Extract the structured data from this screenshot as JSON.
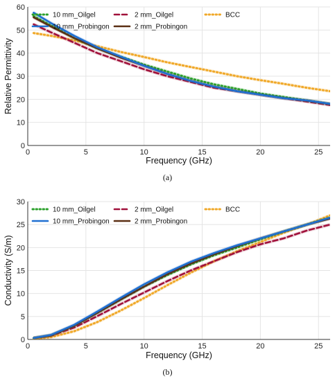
{
  "colors": {
    "oilgel_10": "#2ca02c",
    "probingon_10": "#1f6fd1",
    "oilgel_2": "#a0103a",
    "probingon_2": "#5a2e12",
    "bcc": "#f0a828"
  },
  "chart_data": [
    {
      "type": "line",
      "panel_label": "(a)",
      "xlabel": "Frequency (GHz)",
      "ylabel": "Relative Permittivity",
      "xlim": [
        0,
        26
      ],
      "ylim": [
        0,
        60
      ],
      "xticks": [
        0,
        5,
        10,
        15,
        20,
        25
      ],
      "yticks": [
        0,
        10,
        20,
        30,
        40,
        50,
        60
      ],
      "grid": true,
      "legend_position": "top",
      "x": [
        0.5,
        2,
        4,
        6,
        8,
        10,
        12,
        14,
        16,
        18,
        20,
        22,
        24,
        26
      ],
      "series": [
        {
          "name": "10 mm_Oilgel",
          "style": "dotted",
          "values": [
            56.0,
            52.0,
            46.5,
            42.0,
            38.5,
            35.0,
            32.0,
            29.0,
            26.5,
            24.5,
            22.5,
            21.0,
            19.5,
            18.0
          ]
        },
        {
          "name": "10 mm_Probingon",
          "style": "solid",
          "values": [
            57.5,
            53.0,
            47.5,
            42.5,
            38.5,
            34.5,
            31.0,
            28.0,
            25.5,
            23.5,
            22.0,
            20.5,
            19.5,
            18.0
          ]
        },
        {
          "name": "2 mm_Oilgel",
          "style": "dashed",
          "values": [
            52.5,
            49.0,
            44.5,
            40.0,
            36.5,
            33.0,
            30.0,
            27.5,
            25.0,
            23.5,
            22.0,
            20.5,
            19.0,
            17.5
          ]
        },
        {
          "name": "2 mm_Probingon",
          "style": "solid",
          "values": [
            55.5,
            51.5,
            46.5,
            42.0,
            38.0,
            34.5,
            31.0,
            28.0,
            25.5,
            23.5,
            22.0,
            20.5,
            19.5,
            18.0
          ]
        },
        {
          "name": "BCC",
          "style": "dotted",
          "values": [
            48.7,
            47.5,
            45.5,
            43.0,
            40.5,
            38.3,
            36.0,
            34.0,
            32.0,
            30.0,
            28.3,
            26.7,
            25.0,
            23.5
          ]
        }
      ]
    },
    {
      "type": "line",
      "panel_label": "(b)",
      "xlabel": "Frequency (GHz)",
      "ylabel": "Conductivity (S/m)",
      "xlim": [
        0,
        26
      ],
      "ylim": [
        0,
        30
      ],
      "xticks": [
        0,
        5,
        10,
        15,
        20,
        25
      ],
      "yticks": [
        0,
        5,
        10,
        15,
        20,
        25,
        30
      ],
      "grid": true,
      "legend_position": "top",
      "x": [
        0.5,
        2,
        4,
        6,
        8,
        10,
        12,
        14,
        16,
        18,
        20,
        22,
        24,
        26
      ],
      "series": [
        {
          "name": "10 mm_Oilgel",
          "style": "dotted",
          "values": [
            0.3,
            0.9,
            3.0,
            5.8,
            8.7,
            11.5,
            14.0,
            16.3,
            18.3,
            20.0,
            21.8,
            23.5,
            25.0,
            26.5
          ]
        },
        {
          "name": "10 mm_Probingon",
          "style": "solid",
          "values": [
            0.3,
            1.0,
            3.2,
            6.1,
            9.1,
            12.0,
            14.6,
            16.9,
            18.8,
            20.5,
            22.0,
            23.5,
            25.0,
            26.5
          ]
        },
        {
          "name": "2 mm_Oilgel",
          "style": "dashed",
          "values": [
            0.3,
            0.8,
            2.6,
            5.1,
            7.7,
            10.2,
            12.7,
            15.0,
            17.0,
            19.0,
            20.7,
            22.0,
            23.7,
            25.0
          ]
        },
        {
          "name": "2 mm_Probingon",
          "style": "solid",
          "values": [
            0.3,
            0.9,
            3.0,
            5.8,
            8.7,
            11.5,
            14.2,
            16.5,
            18.5,
            20.3,
            22.0,
            23.5,
            25.0,
            26.3
          ]
        },
        {
          "name": "BCC",
          "style": "dotted",
          "values": [
            0.1,
            0.5,
            1.8,
            3.8,
            6.3,
            9.0,
            11.8,
            14.5,
            17.0,
            19.2,
            21.2,
            23.2,
            25.0,
            27.0
          ]
        }
      ]
    }
  ]
}
